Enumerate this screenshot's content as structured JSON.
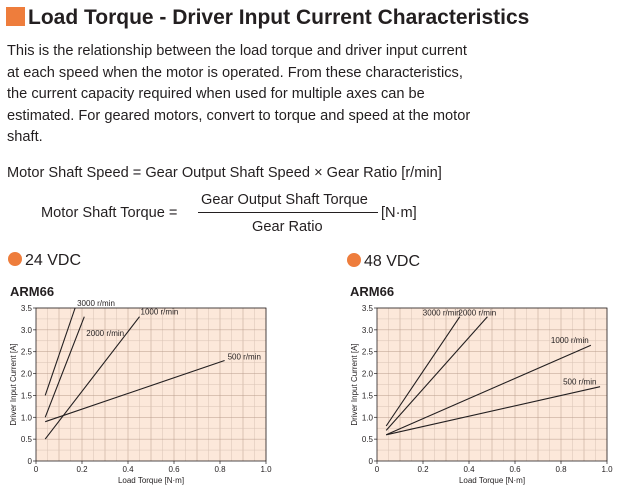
{
  "title": "Load Torque - Driver Input Current Characteristics",
  "intro": "This is the relationship between the load torque and driver input current at each speed when the motor is operated. From these characteristics, the current capacity required when used for multiple axes can be estimated. For geared motors, convert to torque and speed at the motor shaft.",
  "formula1": "Motor Shaft Speed = Gear Output Shaft Speed × Gear Ratio [r/min]",
  "formula2": {
    "left": "Motor Shaft Torque =",
    "numerator": "Gear Output Shaft Torque",
    "denominator": "Gear Ratio",
    "unit": "[N·m]"
  },
  "accent": "#ee7d3c",
  "chart_data": [
    {
      "type": "line",
      "voltage": "24 VDC",
      "model": "ARM66",
      "xlabel": "Load Torque [N·m]",
      "ylabel": "Driver Input Current [A]",
      "xlim": [
        0,
        1.0
      ],
      "ylim": [
        0,
        3.5
      ],
      "xticks": [
        0,
        0.2,
        0.4,
        0.6,
        0.8,
        1.0
      ],
      "yticks": [
        0,
        0.5,
        1.0,
        1.5,
        2.0,
        2.5,
        3.0,
        3.5
      ],
      "grid": true,
      "series": [
        {
          "name": "3000 r/min",
          "x": [
            0.04,
            0.17
          ],
          "y": [
            1.5,
            3.5
          ],
          "label_x": 0.17,
          "label_y": 3.5
        },
        {
          "name": "2000 r/min",
          "x": [
            0.04,
            0.21
          ],
          "y": [
            1.0,
            3.3
          ],
          "label_x": 0.21,
          "label_y": 2.9
        },
        {
          "name": "1000 r/min",
          "x": [
            0.04,
            0.45
          ],
          "y": [
            0.5,
            3.3
          ],
          "label_x": 0.45,
          "label_y": 3.3
        },
        {
          "name": "500 r/min",
          "x": [
            0.04,
            0.82
          ],
          "y": [
            0.9,
            2.3
          ],
          "label_x": 0.82,
          "label_y": 2.3
        }
      ]
    },
    {
      "type": "line",
      "voltage": "48 VDC",
      "model": "ARM66",
      "xlabel": "Load Torque [N·m]",
      "ylabel": "Driver Input Current [A]",
      "xlim": [
        0,
        1.0
      ],
      "ylim": [
        0,
        3.5
      ],
      "xticks": [
        0,
        0.2,
        0.4,
        0.6,
        0.8,
        1.0
      ],
      "yticks": [
        0,
        0.5,
        1.0,
        1.5,
        2.0,
        2.5,
        3.0,
        3.5
      ],
      "grid": true,
      "series": [
        {
          "name": "3000 r/min",
          "x": [
            0.04,
            0.36
          ],
          "y": [
            0.8,
            3.3
          ],
          "label_x": 0.36,
          "label_y": 3.3
        },
        {
          "name": "2000 r/min",
          "x": [
            0.04,
            0.48
          ],
          "y": [
            0.7,
            3.3
          ],
          "label_x": 0.48,
          "label_y": 3.3
        },
        {
          "name": "1000 r/min",
          "x": [
            0.04,
            0.93
          ],
          "y": [
            0.6,
            2.65
          ],
          "label_x": 0.93,
          "label_y": 2.65
        },
        {
          "name": "500 r/min",
          "x": [
            0.04,
            0.97
          ],
          "y": [
            0.6,
            1.7
          ],
          "label_x": 0.97,
          "label_y": 1.7
        }
      ]
    }
  ]
}
